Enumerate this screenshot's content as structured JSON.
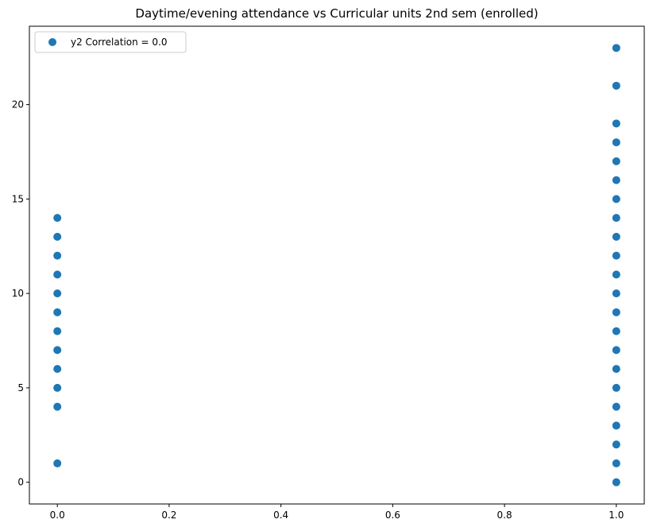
{
  "chart_data": {
    "type": "scatter",
    "title": "Daytime/evening attendance\t vs Curricular units 2nd sem (enrolled)",
    "xlabel": "",
    "ylabel": "",
    "xlim": [
      -0.05,
      1.05
    ],
    "ylim": [
      -1.15,
      24.15
    ],
    "x_ticks": [
      0.0,
      0.2,
      0.4,
      0.6,
      0.8,
      1.0
    ],
    "x_tick_labels": [
      "0.0",
      "0.2",
      "0.4",
      "0.6",
      "0.8",
      "1.0"
    ],
    "y_ticks": [
      0,
      5,
      10,
      15,
      20
    ],
    "y_tick_labels": [
      "0",
      "5",
      "10",
      "15",
      "20"
    ],
    "grid": false,
    "legend_position": "top-left",
    "series": [
      {
        "name": "y2 Correlation = 0.0",
        "color": "#1f77b4",
        "points": [
          [
            0,
            1
          ],
          [
            0,
            4
          ],
          [
            0,
            5
          ],
          [
            0,
            6
          ],
          [
            0,
            7
          ],
          [
            0,
            8
          ],
          [
            0,
            9
          ],
          [
            0,
            10
          ],
          [
            0,
            11
          ],
          [
            0,
            12
          ],
          [
            0,
            13
          ],
          [
            0,
            14
          ],
          [
            1,
            0
          ],
          [
            1,
            1
          ],
          [
            1,
            2
          ],
          [
            1,
            3
          ],
          [
            1,
            4
          ],
          [
            1,
            5
          ],
          [
            1,
            6
          ],
          [
            1,
            7
          ],
          [
            1,
            8
          ],
          [
            1,
            9
          ],
          [
            1,
            10
          ],
          [
            1,
            11
          ],
          [
            1,
            12
          ],
          [
            1,
            13
          ],
          [
            1,
            14
          ],
          [
            1,
            15
          ],
          [
            1,
            16
          ],
          [
            1,
            17
          ],
          [
            1,
            18
          ],
          [
            1,
            19
          ],
          [
            1,
            21
          ],
          [
            1,
            23
          ]
        ]
      }
    ]
  }
}
